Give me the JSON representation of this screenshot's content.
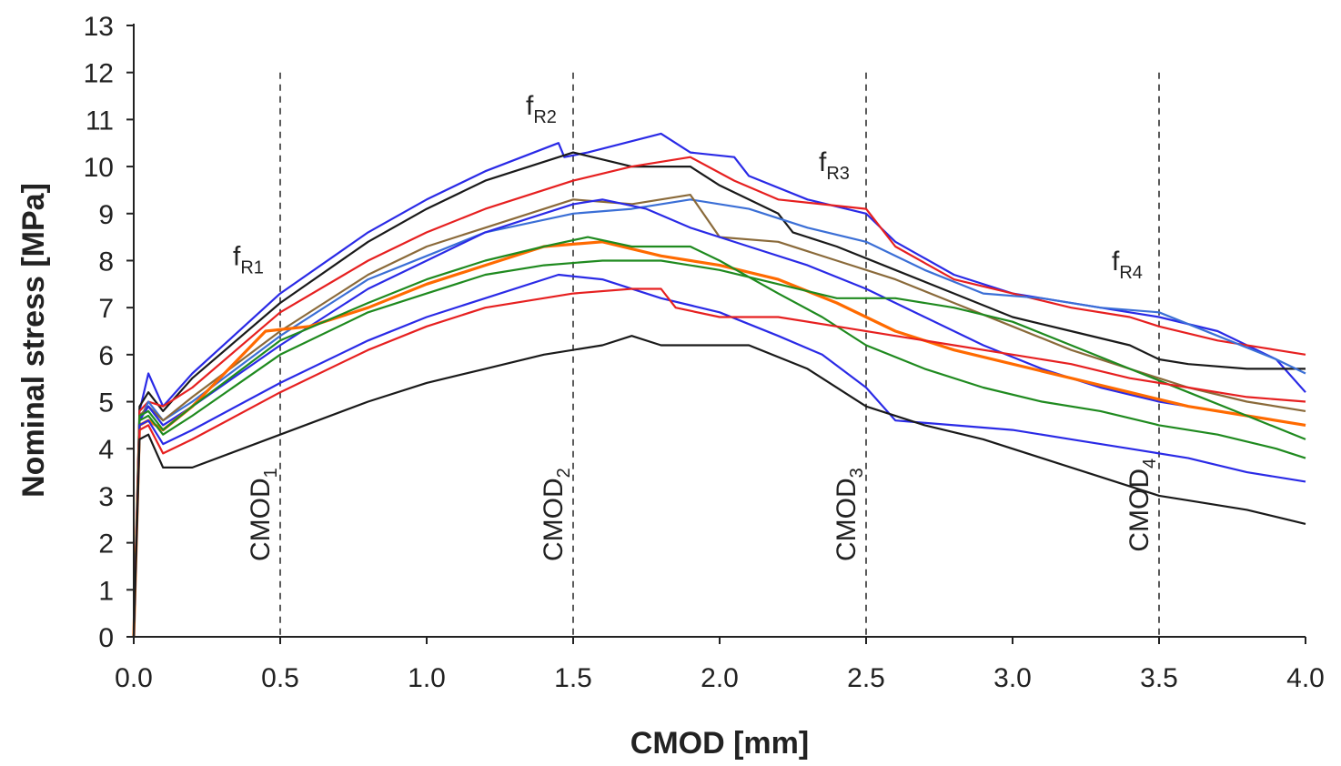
{
  "chart_data": {
    "type": "line",
    "xlabel": "CMOD [mm]",
    "ylabel": "Nominal stress [MPa]",
    "xlim": [
      0,
      4.0
    ],
    "ylim": [
      0,
      13
    ],
    "x_ticks": [
      "0.0",
      "0.5",
      "1.0",
      "1.5",
      "2.0",
      "2.5",
      "3.0",
      "3.5",
      "4.0"
    ],
    "y_ticks": [
      "0",
      "1",
      "2",
      "3",
      "4",
      "5",
      "6",
      "7",
      "8",
      "9",
      "10",
      "11",
      "12",
      "13"
    ],
    "grid": false,
    "reference_lines": [
      {
        "x": 0.5,
        "label": "CMOD",
        "sub": "1",
        "fr_label": "f",
        "fr_sub": "R1",
        "fr_y": 7.9
      },
      {
        "x": 1.5,
        "label": "CMOD",
        "sub": "2",
        "fr_label": "f",
        "fr_sub": "R2",
        "fr_y": 11.1
      },
      {
        "x": 2.5,
        "label": "CMOD",
        "sub": "3",
        "fr_label": "f",
        "fr_sub": "R3",
        "fr_y": 9.9
      },
      {
        "x": 3.5,
        "label": "CMOD",
        "sub": "4",
        "fr_label": "f",
        "fr_sub": "R4",
        "fr_y": 7.8
      }
    ],
    "series": [
      {
        "color": "#2a2ae6",
        "points": [
          [
            0,
            0
          ],
          [
            0.02,
            4.8
          ],
          [
            0.05,
            5.6
          ],
          [
            0.1,
            4.9
          ],
          [
            0.2,
            5.6
          ],
          [
            0.5,
            7.3
          ],
          [
            0.8,
            8.6
          ],
          [
            1.0,
            9.3
          ],
          [
            1.2,
            9.9
          ],
          [
            1.45,
            10.5
          ],
          [
            1.47,
            10.2
          ],
          [
            1.55,
            10.3
          ],
          [
            1.8,
            10.7
          ],
          [
            1.9,
            10.3
          ],
          [
            2.05,
            10.2
          ],
          [
            2.1,
            9.8
          ],
          [
            2.3,
            9.3
          ],
          [
            2.5,
            9.0
          ],
          [
            2.6,
            8.4
          ],
          [
            2.8,
            7.7
          ],
          [
            3.0,
            7.3
          ],
          [
            3.3,
            7.0
          ],
          [
            3.5,
            6.8
          ],
          [
            3.7,
            6.5
          ],
          [
            3.9,
            5.9
          ],
          [
            4.0,
            5.2
          ]
        ]
      },
      {
        "color": "#1a1a1a",
        "points": [
          [
            0,
            0
          ],
          [
            0.02,
            4.9
          ],
          [
            0.05,
            5.2
          ],
          [
            0.1,
            4.8
          ],
          [
            0.2,
            5.5
          ],
          [
            0.5,
            7.1
          ],
          [
            0.8,
            8.4
          ],
          [
            1.0,
            9.1
          ],
          [
            1.2,
            9.7
          ],
          [
            1.5,
            10.3
          ],
          [
            1.7,
            10.0
          ],
          [
            1.9,
            10.0
          ],
          [
            2.0,
            9.6
          ],
          [
            2.2,
            9.0
          ],
          [
            2.25,
            8.6
          ],
          [
            2.4,
            8.3
          ],
          [
            2.6,
            7.8
          ],
          [
            2.8,
            7.3
          ],
          [
            3.0,
            6.8
          ],
          [
            3.2,
            6.5
          ],
          [
            3.4,
            6.2
          ],
          [
            3.5,
            5.9
          ],
          [
            3.6,
            5.8
          ],
          [
            3.8,
            5.7
          ],
          [
            4.0,
            5.7
          ]
        ]
      },
      {
        "color": "#e62020",
        "points": [
          [
            0,
            0
          ],
          [
            0.02,
            4.8
          ],
          [
            0.05,
            5.0
          ],
          [
            0.1,
            4.9
          ],
          [
            0.2,
            5.3
          ],
          [
            0.5,
            6.9
          ],
          [
            0.8,
            8.0
          ],
          [
            1.0,
            8.6
          ],
          [
            1.2,
            9.1
          ],
          [
            1.5,
            9.7
          ],
          [
            1.7,
            10.0
          ],
          [
            1.9,
            10.2
          ],
          [
            2.05,
            9.7
          ],
          [
            2.2,
            9.3
          ],
          [
            2.5,
            9.1
          ],
          [
            2.6,
            8.3
          ],
          [
            2.8,
            7.6
          ],
          [
            3.0,
            7.3
          ],
          [
            3.2,
            7.0
          ],
          [
            3.4,
            6.8
          ],
          [
            3.5,
            6.6
          ],
          [
            3.7,
            6.3
          ],
          [
            3.9,
            6.1
          ],
          [
            4.0,
            6.0
          ]
        ]
      },
      {
        "color": "#3b6fd6",
        "points": [
          [
            0,
            0
          ],
          [
            0.02,
            4.6
          ],
          [
            0.05,
            5.0
          ],
          [
            0.1,
            4.6
          ],
          [
            0.2,
            5.0
          ],
          [
            0.5,
            6.4
          ],
          [
            0.8,
            7.6
          ],
          [
            1.0,
            8.1
          ],
          [
            1.2,
            8.6
          ],
          [
            1.5,
            9.0
          ],
          [
            1.7,
            9.1
          ],
          [
            1.9,
            9.3
          ],
          [
            2.1,
            9.1
          ],
          [
            2.3,
            8.7
          ],
          [
            2.5,
            8.4
          ],
          [
            2.7,
            7.8
          ],
          [
            2.9,
            7.3
          ],
          [
            3.1,
            7.2
          ],
          [
            3.3,
            7.0
          ],
          [
            3.5,
            6.9
          ],
          [
            3.7,
            6.4
          ],
          [
            3.9,
            5.9
          ],
          [
            4.0,
            5.6
          ]
        ]
      },
      {
        "color": "#8a6a3a",
        "points": [
          [
            0,
            0
          ],
          [
            0.02,
            4.7
          ],
          [
            0.05,
            4.9
          ],
          [
            0.1,
            4.6
          ],
          [
            0.2,
            5.1
          ],
          [
            0.5,
            6.5
          ],
          [
            0.8,
            7.7
          ],
          [
            1.0,
            8.3
          ],
          [
            1.2,
            8.7
          ],
          [
            1.5,
            9.3
          ],
          [
            1.7,
            9.2
          ],
          [
            1.9,
            9.4
          ],
          [
            2.0,
            8.5
          ],
          [
            2.2,
            8.4
          ],
          [
            2.4,
            8.0
          ],
          [
            2.6,
            7.6
          ],
          [
            2.8,
            7.1
          ],
          [
            3.0,
            6.6
          ],
          [
            3.2,
            6.1
          ],
          [
            3.4,
            5.7
          ],
          [
            3.6,
            5.3
          ],
          [
            3.8,
            5.0
          ],
          [
            4.0,
            4.8
          ]
        ]
      },
      {
        "color": "#2a2ae6",
        "points": [
          [
            0,
            0
          ],
          [
            0.02,
            4.6
          ],
          [
            0.05,
            4.9
          ],
          [
            0.1,
            4.5
          ],
          [
            0.2,
            4.9
          ],
          [
            0.5,
            6.2
          ],
          [
            0.8,
            7.4
          ],
          [
            1.0,
            8.0
          ],
          [
            1.2,
            8.6
          ],
          [
            1.5,
            9.2
          ],
          [
            1.6,
            9.3
          ],
          [
            1.75,
            9.1
          ],
          [
            1.9,
            8.7
          ],
          [
            2.1,
            8.3
          ],
          [
            2.3,
            7.9
          ],
          [
            2.5,
            7.4
          ],
          [
            2.7,
            6.8
          ],
          [
            2.9,
            6.2
          ],
          [
            3.1,
            5.7
          ],
          [
            3.3,
            5.3
          ],
          [
            3.5,
            5.0
          ],
          [
            3.7,
            4.8
          ],
          [
            4.0,
            4.5
          ]
        ]
      },
      {
        "color": "#ff6a00",
        "points": [
          [
            0,
            0
          ],
          [
            0.02,
            4.5
          ],
          [
            0.05,
            4.6
          ],
          [
            0.1,
            4.4
          ],
          [
            0.2,
            4.9
          ],
          [
            0.45,
            6.5
          ],
          [
            0.6,
            6.6
          ],
          [
            0.8,
            7.0
          ],
          [
            1.0,
            7.5
          ],
          [
            1.2,
            7.9
          ],
          [
            1.4,
            8.3
          ],
          [
            1.6,
            8.4
          ],
          [
            1.8,
            8.1
          ],
          [
            2.0,
            7.9
          ],
          [
            2.2,
            7.6
          ],
          [
            2.4,
            7.1
          ],
          [
            2.6,
            6.5
          ],
          [
            2.8,
            6.1
          ],
          [
            3.0,
            5.8
          ],
          [
            3.2,
            5.5
          ],
          [
            3.4,
            5.2
          ],
          [
            3.6,
            4.9
          ],
          [
            3.8,
            4.7
          ],
          [
            4.0,
            4.5
          ]
        ]
      },
      {
        "color": "#1f8a1f",
        "points": [
          [
            0,
            0
          ],
          [
            0.02,
            4.7
          ],
          [
            0.05,
            4.8
          ],
          [
            0.1,
            4.4
          ],
          [
            0.2,
            4.9
          ],
          [
            0.5,
            6.3
          ],
          [
            0.8,
            7.1
          ],
          [
            1.0,
            7.6
          ],
          [
            1.2,
            8.0
          ],
          [
            1.4,
            8.3
          ],
          [
            1.55,
            8.5
          ],
          [
            1.7,
            8.3
          ],
          [
            1.9,
            8.3
          ],
          [
            2.0,
            8.0
          ],
          [
            2.2,
            7.3
          ],
          [
            2.35,
            6.8
          ],
          [
            2.5,
            6.2
          ],
          [
            2.7,
            5.7
          ],
          [
            2.9,
            5.3
          ],
          [
            3.1,
            5.0
          ],
          [
            3.3,
            4.8
          ],
          [
            3.5,
            4.5
          ],
          [
            3.7,
            4.3
          ],
          [
            3.9,
            4.0
          ],
          [
            4.0,
            3.8
          ]
        ]
      },
      {
        "color": "#1f8a1f",
        "points": [
          [
            0,
            0
          ],
          [
            0.02,
            4.6
          ],
          [
            0.05,
            4.7
          ],
          [
            0.1,
            4.3
          ],
          [
            0.2,
            4.7
          ],
          [
            0.5,
            6.0
          ],
          [
            0.8,
            6.9
          ],
          [
            1.0,
            7.3
          ],
          [
            1.2,
            7.7
          ],
          [
            1.4,
            7.9
          ],
          [
            1.6,
            8.0
          ],
          [
            1.8,
            8.0
          ],
          [
            2.0,
            7.8
          ],
          [
            2.2,
            7.5
          ],
          [
            2.4,
            7.2
          ],
          [
            2.6,
            7.2
          ],
          [
            2.8,
            7.0
          ],
          [
            3.0,
            6.7
          ],
          [
            3.2,
            6.2
          ],
          [
            3.4,
            5.7
          ],
          [
            3.6,
            5.2
          ],
          [
            3.8,
            4.7
          ],
          [
            4.0,
            4.2
          ]
        ]
      },
      {
        "color": "#2a2ae6",
        "points": [
          [
            0,
            0
          ],
          [
            0.02,
            4.5
          ],
          [
            0.05,
            4.6
          ],
          [
            0.1,
            4.1
          ],
          [
            0.2,
            4.4
          ],
          [
            0.5,
            5.4
          ],
          [
            0.8,
            6.3
          ],
          [
            1.0,
            6.8
          ],
          [
            1.2,
            7.2
          ],
          [
            1.45,
            7.7
          ],
          [
            1.6,
            7.6
          ],
          [
            1.8,
            7.2
          ],
          [
            2.0,
            6.9
          ],
          [
            2.2,
            6.4
          ],
          [
            2.35,
            6.0
          ],
          [
            2.5,
            5.3
          ],
          [
            2.6,
            4.6
          ],
          [
            2.8,
            4.5
          ],
          [
            3.0,
            4.4
          ],
          [
            3.2,
            4.2
          ],
          [
            3.4,
            4.0
          ],
          [
            3.6,
            3.8
          ],
          [
            3.8,
            3.5
          ],
          [
            4.0,
            3.3
          ]
        ]
      },
      {
        "color": "#e62020",
        "points": [
          [
            0,
            0
          ],
          [
            0.02,
            4.4
          ],
          [
            0.05,
            4.5
          ],
          [
            0.1,
            3.9
          ],
          [
            0.2,
            4.2
          ],
          [
            0.5,
            5.2
          ],
          [
            0.8,
            6.1
          ],
          [
            1.0,
            6.6
          ],
          [
            1.2,
            7.0
          ],
          [
            1.5,
            7.3
          ],
          [
            1.7,
            7.4
          ],
          [
            1.8,
            7.4
          ],
          [
            1.85,
            7.0
          ],
          [
            2.0,
            6.8
          ],
          [
            2.2,
            6.8
          ],
          [
            2.4,
            6.6
          ],
          [
            2.6,
            6.4
          ],
          [
            2.8,
            6.2
          ],
          [
            3.0,
            6.0
          ],
          [
            3.2,
            5.8
          ],
          [
            3.4,
            5.5
          ],
          [
            3.6,
            5.3
          ],
          [
            3.8,
            5.1
          ],
          [
            4.0,
            5.0
          ]
        ]
      },
      {
        "color": "#1a1a1a",
        "points": [
          [
            0,
            0
          ],
          [
            0.02,
            4.2
          ],
          [
            0.05,
            4.3
          ],
          [
            0.1,
            3.6
          ],
          [
            0.2,
            3.6
          ],
          [
            0.5,
            4.3
          ],
          [
            0.8,
            5.0
          ],
          [
            1.0,
            5.4
          ],
          [
            1.2,
            5.7
          ],
          [
            1.4,
            6.0
          ],
          [
            1.6,
            6.2
          ],
          [
            1.7,
            6.4
          ],
          [
            1.8,
            6.2
          ],
          [
            2.0,
            6.2
          ],
          [
            2.1,
            6.2
          ],
          [
            2.3,
            5.7
          ],
          [
            2.5,
            4.9
          ],
          [
            2.7,
            4.5
          ],
          [
            2.9,
            4.2
          ],
          [
            3.1,
            3.8
          ],
          [
            3.3,
            3.4
          ],
          [
            3.5,
            3.0
          ],
          [
            3.6,
            2.9
          ],
          [
            3.8,
            2.7
          ],
          [
            4.0,
            2.4
          ]
        ]
      }
    ]
  }
}
